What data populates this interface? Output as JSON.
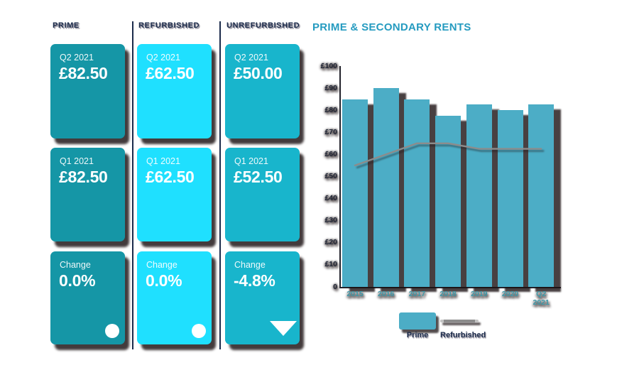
{
  "page": {
    "background": "#ffffff"
  },
  "columns": [
    {
      "header": "PRIME",
      "color": "#1596a6",
      "cards": [
        {
          "label": "Q2 2021",
          "value": "£82.50"
        },
        {
          "label": "Q1 2021",
          "value": "£82.50"
        },
        {
          "label": "Change",
          "value": "0.0%",
          "indicator": "circle"
        }
      ]
    },
    {
      "header": "REFURBISHED",
      "color": "#1fe0ff",
      "cards": [
        {
          "label": "Q2 2021",
          "value": "£62.50"
        },
        {
          "label": "Q1 2021",
          "value": "£62.50"
        },
        {
          "label": "Change",
          "value": "0.0%",
          "indicator": "circle"
        }
      ]
    },
    {
      "header": "UNREFURBISHED",
      "color": "#18b5cc",
      "cards": [
        {
          "label": "Q2 2021",
          "value": "£50.00"
        },
        {
          "label": "Q1 2021",
          "value": "£52.50"
        },
        {
          "label": "Change",
          "value": "-4.8%",
          "indicator": "triangle-down"
        }
      ]
    }
  ],
  "chart_data": {
    "type": "bar",
    "title": "PRIME & SECONDARY RENTS",
    "categories": [
      "2015",
      "2016",
      "2017",
      "2018",
      "2019",
      "2020",
      "Q2 2021"
    ],
    "series": [
      {
        "name": "Prime",
        "render": "bar",
        "color": "#4cadc6",
        "values": [
          85,
          90,
          85,
          77.5,
          82.5,
          80,
          82.5
        ]
      },
      {
        "name": "Refurbished",
        "render": "line",
        "color": "#8c8c8c",
        "values": [
          55,
          60,
          65,
          65,
          62.5,
          62.5,
          62.5
        ]
      }
    ],
    "ylim": [
      0,
      100
    ],
    "ytick_labels": [
      "£100",
      "£90",
      "£80",
      "£70",
      "£60",
      "£50",
      "£40",
      "£30",
      "£20",
      "£10",
      "0"
    ],
    "grid": false,
    "legend_position": "bottom"
  }
}
